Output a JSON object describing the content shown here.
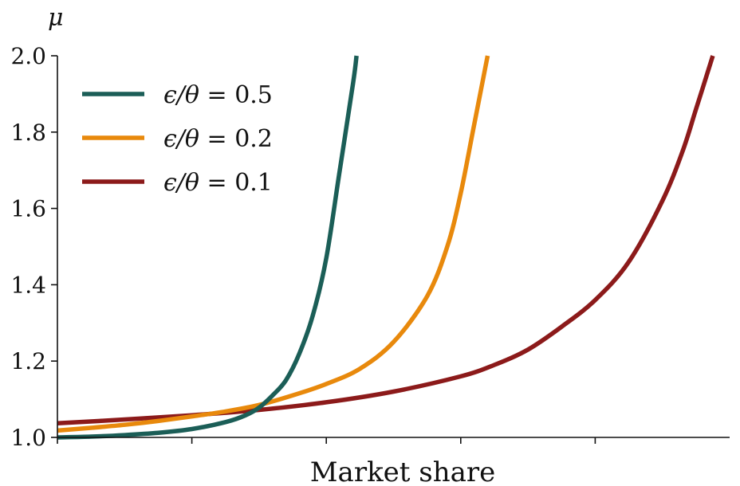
{
  "chart_data": {
    "type": "line",
    "title": "",
    "xlabel": "Market share",
    "ylabel": "μ",
    "xlim": [
      0,
      1
    ],
    "ylim": [
      1.0,
      2.0
    ],
    "x_ticks": [
      0,
      0.2,
      0.4,
      0.6,
      0.8
    ],
    "x_tick_labels": [
      "",
      "",
      "",
      "",
      ""
    ],
    "y_ticks": [
      1.0,
      1.2,
      1.4,
      1.6,
      1.8,
      2.0
    ],
    "y_tick_labels": [
      "1.0",
      "1.2",
      "1.4",
      "1.6",
      "1.8",
      "2.0"
    ],
    "grid": false,
    "legend_position": "top-left",
    "series": [
      {
        "name": "ϵ/θ = 0.5",
        "legend_symbol": "ϵ/θ",
        "legend_value": "= 0.5",
        "color": "#1b5e57",
        "x": [
          0.0,
          0.05,
          0.1,
          0.15,
          0.2,
          0.25,
          0.28,
          0.3,
          0.32,
          0.34,
          0.36,
          0.38,
          0.4,
          0.42,
          0.44,
          0.445
        ],
        "y": [
          1.0,
          1.002,
          1.006,
          1.012,
          1.022,
          1.04,
          1.058,
          1.078,
          1.11,
          1.15,
          1.22,
          1.32,
          1.47,
          1.7,
          1.93,
          2.0
        ]
      },
      {
        "name": "ϵ/θ = 0.2",
        "legend_symbol": "ϵ/θ",
        "legend_value": "= 0.2",
        "color": "#e8890c",
        "x": [
          0.0,
          0.05,
          0.1,
          0.15,
          0.2,
          0.25,
          0.3,
          0.35,
          0.4,
          0.45,
          0.5,
          0.55,
          0.58,
          0.6,
          0.62,
          0.64
        ],
        "y": [
          1.018,
          1.025,
          1.033,
          1.043,
          1.055,
          1.068,
          1.085,
          1.11,
          1.14,
          1.18,
          1.25,
          1.37,
          1.5,
          1.64,
          1.82,
          2.0
        ]
      },
      {
        "name": "ϵ/θ = 0.1",
        "legend_symbol": "ϵ/θ",
        "legend_value": "= 0.1",
        "color": "#8c1a1a",
        "x": [
          0.0,
          0.1,
          0.2,
          0.3,
          0.4,
          0.5,
          0.6,
          0.65,
          0.7,
          0.75,
          0.8,
          0.85,
          0.9,
          0.93,
          0.95,
          0.975
        ],
        "y": [
          1.037,
          1.047,
          1.058,
          1.072,
          1.092,
          1.12,
          1.16,
          1.19,
          1.23,
          1.29,
          1.36,
          1.46,
          1.62,
          1.75,
          1.86,
          2.0
        ]
      }
    ]
  }
}
